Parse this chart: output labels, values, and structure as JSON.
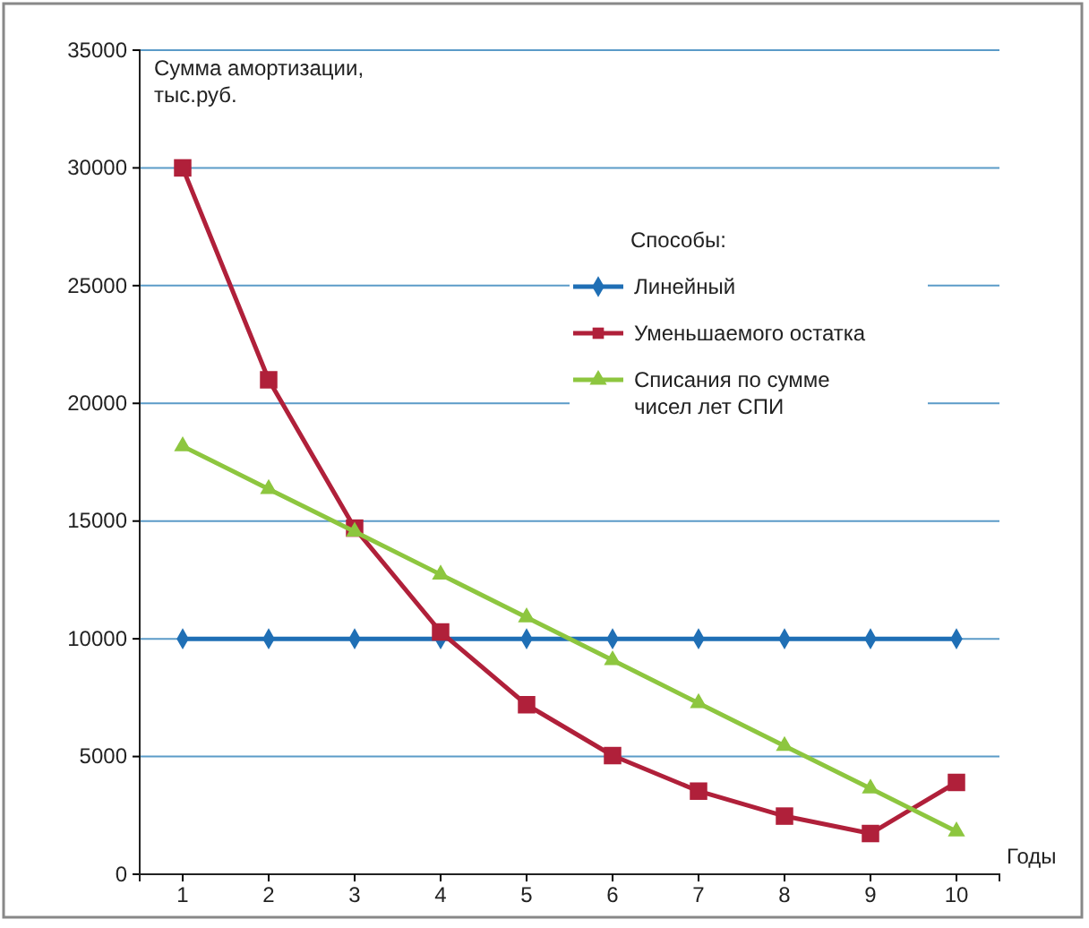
{
  "chart_data": {
    "type": "line",
    "ylabel": "Сумма амортизации,\nтыс.руб.",
    "xlabel": "Годы",
    "legend_title": "Способы:",
    "categories": [
      "1",
      "2",
      "3",
      "4",
      "5",
      "6",
      "7",
      "8",
      "9",
      "10"
    ],
    "series": [
      {
        "name": "Линейный",
        "color": "#1f6fb5",
        "marker": "diamond",
        "values": [
          10000,
          10000,
          10000,
          10000,
          10000,
          10000,
          10000,
          10000,
          10000,
          10000
        ]
      },
      {
        "name": "Уменьшаемого остатка",
        "color": "#b0203a",
        "marker": "square",
        "values": [
          30000,
          21000,
          14700,
          10290,
          7200,
          5040,
          3530,
          2470,
          1730,
          3900
        ]
      },
      {
        "name": "Списания по сумме\nчисел лет СПИ",
        "color": "#8dc63f",
        "marker": "triangle",
        "values": [
          18180,
          16360,
          14550,
          12730,
          10910,
          9090,
          7270,
          5450,
          3640,
          1820
        ]
      }
    ],
    "ylim": [
      0,
      35000
    ],
    "yticks": [
      0,
      5000,
      10000,
      15000,
      20000,
      25000,
      30000,
      35000
    ],
    "grid": "y",
    "legend": "top right",
    "line_style": "solid"
  }
}
